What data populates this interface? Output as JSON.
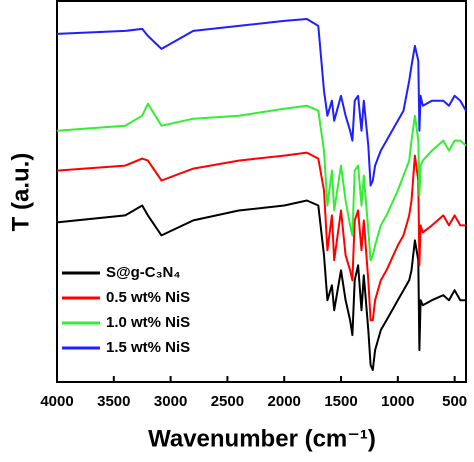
{
  "chart_data": {
    "type": "line",
    "x_label": "Wavenumber (cm⁻¹)",
    "y_label": "T (a.u.)",
    "xlim": [
      4000,
      400
    ],
    "xticks": [
      4000,
      3500,
      3000,
      2500,
      2000,
      1500,
      1000,
      500
    ],
    "ylim": [
      18,
      400
    ],
    "legend": "lower left",
    "x": [
      4000,
      3400,
      3250,
      3200,
      3080,
      2800,
      2400,
      2000,
      1800,
      1700,
      1650,
      1620,
      1580,
      1560,
      1500,
      1460,
      1420,
      1400,
      1380,
      1350,
      1320,
      1300,
      1260,
      1240,
      1220,
      1200,
      1150,
      1100,
      1000,
      950,
      900,
      880,
      850,
      820,
      810,
      800,
      780,
      700,
      600,
      550,
      500,
      450,
      400
    ],
    "series": [
      {
        "name": "S@g-C₃N₄",
        "color": "#000000",
        "values": [
          178,
          185,
          195,
          185,
          165,
          180,
          190,
          195,
          200,
          195,
          145,
          100,
          115,
          90,
          130,
          100,
          80,
          65,
          120,
          135,
          90,
          125,
          70,
          35,
          30,
          50,
          70,
          80,
          100,
          110,
          120,
          130,
          160,
          140,
          50,
          100,
          95,
          100,
          105,
          100,
          110,
          100,
          100
        ]
      },
      {
        "name": "0.5 wt% NiS",
        "color": "#ff0000",
        "values": [
          230,
          235,
          242,
          240,
          220,
          232,
          240,
          245,
          248,
          242,
          210,
          150,
          185,
          140,
          190,
          145,
          130,
          120,
          180,
          190,
          150,
          180,
          120,
          80,
          80,
          100,
          120,
          130,
          155,
          165,
          185,
          200,
          245,
          220,
          135,
          175,
          168,
          175,
          185,
          175,
          185,
          175,
          175
        ]
      },
      {
        "name": "1.0 wt% NiS",
        "color": "#33ee33",
        "values": [
          270,
          275,
          285,
          297,
          275,
          282,
          285,
          292,
          295,
          290,
          250,
          195,
          230,
          190,
          235,
          200,
          175,
          165,
          230,
          235,
          195,
          225,
          170,
          140,
          145,
          155,
          175,
          185,
          210,
          225,
          240,
          260,
          285,
          260,
          205,
          235,
          240,
          250,
          260,
          250,
          260,
          260,
          255
        ]
      },
      {
        "name": "1.5 wt% NiS",
        "color": "#1f1fff",
        "values": [
          367,
          370,
          372,
          365,
          352,
          370,
          375,
          380,
          382,
          375,
          310,
          285,
          300,
          280,
          305,
          285,
          270,
          260,
          300,
          305,
          270,
          300,
          255,
          215,
          220,
          235,
          250,
          260,
          280,
          290,
          320,
          335,
          355,
          340,
          270,
          305,
          295,
          300,
          300,
          295,
          305,
          300,
          290
        ]
      }
    ]
  }
}
